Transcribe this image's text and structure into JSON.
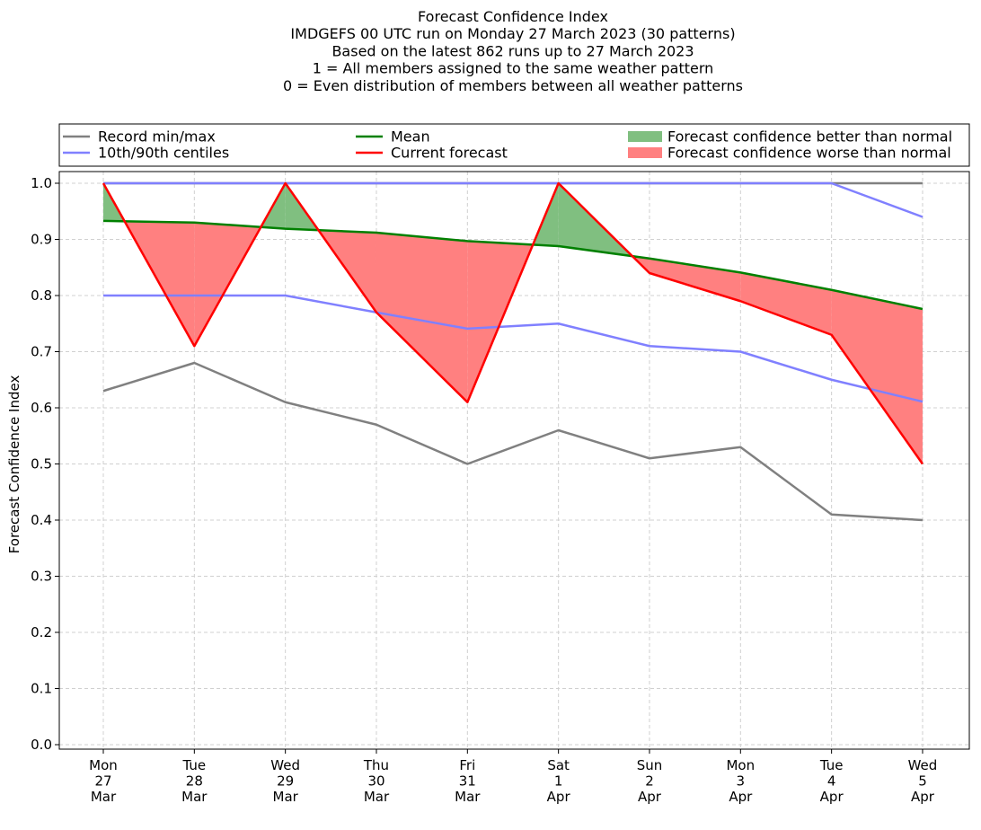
{
  "chart_data": {
    "type": "line",
    "title_lines": [
      "Forecast Confidence Index",
      "IMDGEFS 00 UTC run on Monday 27 March 2023 (30 patterns)",
      "Based on the latest 862 runs up to 27 March 2023",
      "1 = All members assigned to the same weather pattern",
      "0 = Even distribution of members between all weather patterns"
    ],
    "ylabel": "Forecast Confidence Index",
    "xlabel": "",
    "ylim": [
      0.0,
      1.0
    ],
    "yticks": [
      "0.0",
      "0.1",
      "0.2",
      "0.3",
      "0.4",
      "0.5",
      "0.6",
      "0.7",
      "0.8",
      "0.9",
      "1.0"
    ],
    "x_tick_labels": [
      [
        "Mon",
        "27",
        "Mar"
      ],
      [
        "Tue",
        "28",
        "Mar"
      ],
      [
        "Wed",
        "29",
        "Mar"
      ],
      [
        "Thu",
        "30",
        "Mar"
      ],
      [
        "Fri",
        "31",
        "Mar"
      ],
      [
        "Sat",
        "1",
        "Apr"
      ],
      [
        "Sun",
        "2",
        "Apr"
      ],
      [
        "Mon",
        "3",
        "Apr"
      ],
      [
        "Tue",
        "4",
        "Apr"
      ],
      [
        "Wed",
        "5",
        "Apr"
      ]
    ],
    "grid": true,
    "legend_position": "top",
    "series": [
      {
        "name": "Record min/max",
        "key": "record_max",
        "color": "#808080",
        "values": [
          1.0,
          1.0,
          1.0,
          1.0,
          1.0,
          1.0,
          1.0,
          1.0,
          1.0,
          1.0
        ]
      },
      {
        "name": "Record min/max",
        "key": "record_min",
        "color": "#808080",
        "values": [
          0.63,
          0.68,
          0.61,
          0.57,
          0.5,
          0.56,
          0.51,
          0.53,
          0.41,
          0.4
        ]
      },
      {
        "name": "10th/90th centiles",
        "key": "p90",
        "color": "#8080ff",
        "values": [
          1.0,
          1.0,
          1.0,
          1.0,
          1.0,
          1.0,
          1.0,
          1.0,
          1.0,
          0.94
        ]
      },
      {
        "name": "10th/90th centiles",
        "key": "p10",
        "color": "#8080ff",
        "values": [
          0.8,
          0.8,
          0.8,
          0.77,
          0.741,
          0.75,
          0.71,
          0.7,
          0.65,
          0.611
        ]
      },
      {
        "name": "Mean",
        "key": "mean",
        "color": "#008000",
        "values": [
          0.933,
          0.93,
          0.919,
          0.912,
          0.897,
          0.888,
          0.866,
          0.841,
          0.81,
          0.776
        ]
      },
      {
        "name": "Current forecast",
        "key": "current",
        "color": "#ff0000",
        "values": [
          1.0,
          0.71,
          1.0,
          0.77,
          0.61,
          1.0,
          0.84,
          0.79,
          0.73,
          0.5
        ]
      }
    ],
    "fills": [
      {
        "name": "Forecast confidence better than normal",
        "color": "#80bf80"
      },
      {
        "name": "Forecast confidence worse than normal",
        "color": "#ff8080"
      }
    ],
    "legend": [
      {
        "label": "Record min/max",
        "color": "#808080",
        "kind": "line"
      },
      {
        "label": "Mean",
        "color": "#008000",
        "kind": "line"
      },
      {
        "label": "Forecast confidence better than normal",
        "color": "#80bf80",
        "kind": "patch"
      },
      {
        "label": "10th/90th centiles",
        "color": "#8080ff",
        "kind": "line"
      },
      {
        "label": "Current forecast",
        "color": "#ff0000",
        "kind": "line"
      },
      {
        "label": "Forecast confidence worse than normal",
        "color": "#ff8080",
        "kind": "patch"
      }
    ]
  }
}
